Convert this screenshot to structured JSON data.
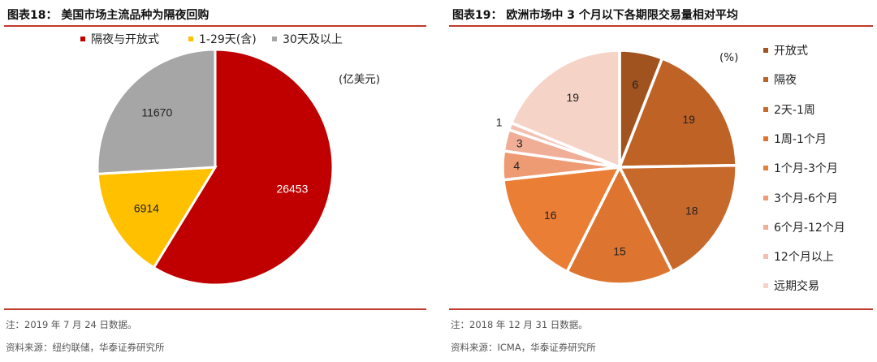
{
  "chart_data": [
    {
      "type": "pie",
      "title": "图表18： 美国市场主流品种为隔夜回购",
      "unit": "(亿美元)",
      "legend_position": "top",
      "categories": [
        "隔夜与开放式",
        "1-29天(含)",
        "30天及以上"
      ],
      "values": [
        26453,
        6914,
        11670
      ],
      "labels": [
        "26453",
        "6914",
        "11670"
      ],
      "colors": [
        "#C00000",
        "#FFC000",
        "#A6A6A6"
      ],
      "note": "注：2019 年 7 月 24 日数据。",
      "source": "资料来源：纽约联储，华泰证券研究所"
    },
    {
      "type": "pie",
      "title": "图表19： 欧洲市场中 3 个月以下各期限交易量相对平均",
      "unit": "(%)",
      "legend_position": "right",
      "categories": [
        "开放式",
        "隔夜",
        "2天-1周",
        "1周-1个月",
        "1个月-3个月",
        "3个月-6个月",
        "6个月-12个月",
        "12个月以上",
        "远期交易"
      ],
      "values": [
        6,
        19,
        18,
        15,
        16,
        4,
        3,
        1,
        19
      ],
      "labels": [
        "6",
        "19",
        "18",
        "15",
        "16",
        "4",
        "3",
        "1",
        "19"
      ],
      "colors": [
        "#A0521F",
        "#BE6226",
        "#C8692C",
        "#DD7430",
        "#EA7E35",
        "#EE9A73",
        "#F0AE96",
        "#F3C0B0",
        "#F6D3C7"
      ],
      "note": "注：2018 年 12 月 31 日数据。",
      "source": "资料来源：ICMA，华泰证券研究所"
    }
  ]
}
